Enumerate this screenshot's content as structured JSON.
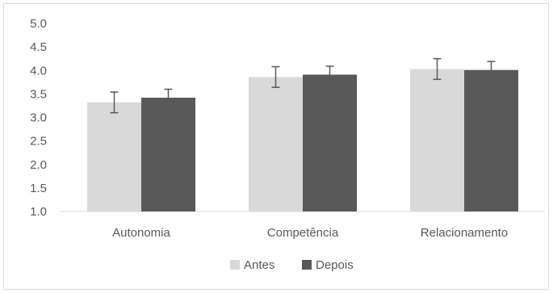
{
  "chart_data": {
    "type": "bar",
    "categories": [
      "Autonomia",
      "Competência",
      "Relacionamento"
    ],
    "series": [
      {
        "name": "Antes",
        "color": "#d9d9d9",
        "values": [
          3.32,
          3.86,
          4.03
        ],
        "error": [
          0.22,
          0.22,
          0.22
        ]
      },
      {
        "name": "Depois",
        "color": "#595959",
        "values": [
          3.42,
          3.91,
          4.01
        ],
        "error": [
          0.18,
          0.18,
          0.18
        ]
      }
    ],
    "ylim": [
      1.0,
      5.0
    ],
    "yticks": [
      "1.0",
      "1.5",
      "2.0",
      "2.5",
      "3.0",
      "3.5",
      "4.0",
      "4.5",
      "5.0"
    ],
    "title": "",
    "xlabel": "",
    "ylabel": "",
    "grid": false,
    "legend_position": "bottom"
  }
}
